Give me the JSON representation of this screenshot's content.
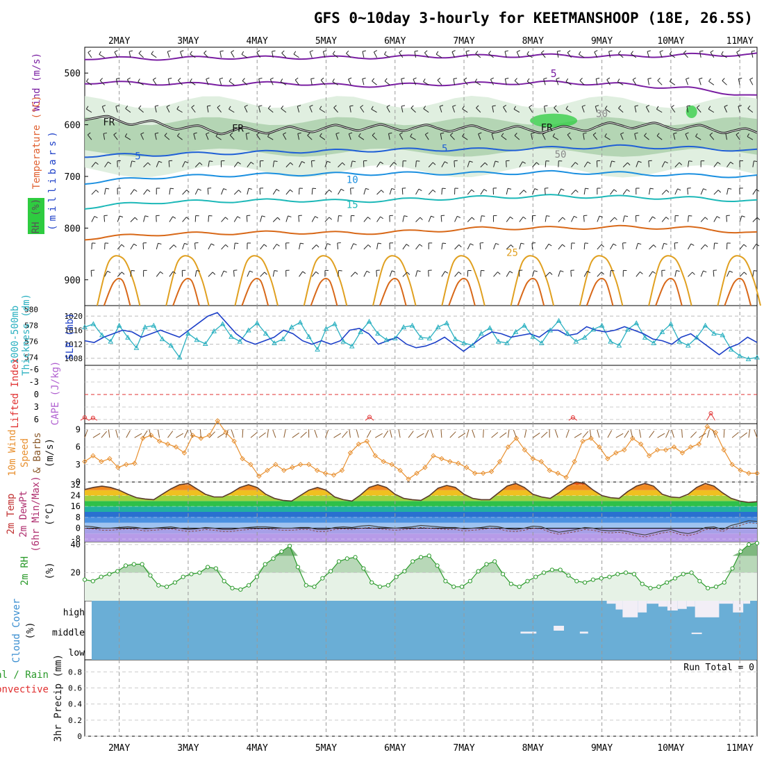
{
  "title": "GFS 0~10day 3-hourly for KEETMANSHOOP (18E, 26.5S)",
  "colors": {
    "wind_purple": "#7a1fa2",
    "freezing": "#111111",
    "t5": "#1f5fd6",
    "t10": "#1a8fe0",
    "t15": "#1cb8b8",
    "t25": "#e0a020",
    "t_warm": "#d86818",
    "rh_fill": "#d8ebd8",
    "rh_fill_dark": "#8fbf8f",
    "rh_fill_green": "#2ecc40",
    "thickness": "#2ab0c0",
    "slp": "#1c3fc8",
    "lifted_index": "#e03030",
    "cape": "#b060d0",
    "wind10": "#e89030",
    "barb": "#8b5a2b",
    "rh2m": "#2a9a2a",
    "cloud": "#6aaed6",
    "cloud_gap": "#f2eef6",
    "grid": "#aaaaaa"
  },
  "chart_data": {
    "time_axis": {
      "dates": [
        "2MAY",
        "3MAY",
        "4MAY",
        "5MAY",
        "6MAY",
        "7MAY",
        "8MAY",
        "9MAY",
        "10MAY",
        "11MAY"
      ],
      "start_day": 1.5,
      "end_day": 11.25
    },
    "upper_air": {
      "type": "contour",
      "ylabel_parts": [
        "Wind (m/s)",
        "Temperature (°C)",
        "RH (%)"
      ],
      "ylabel_axis": "(millibars)",
      "y_ticks": [
        500,
        600,
        700,
        800,
        900
      ],
      "y_range": [
        450,
        950
      ],
      "levels": [
        {
          "label": "5",
          "kind": "wind",
          "p": [
            471,
            472,
            470,
            470,
            470,
            468,
            467,
            466,
            468,
            465,
            464
          ]
        },
        {
          "label": "5",
          "kind": "wind",
          "p": [
            518,
            520,
            522,
            519,
            525,
            522,
            520,
            518,
            522,
            530,
            545
          ]
        },
        {
          "label": "FR",
          "kind": "freezing",
          "p": [
            585,
            598,
            612,
            610,
            605,
            606,
            608,
            610,
            600,
            605,
            615
          ]
        },
        {
          "label": "5",
          "kind": "temp",
          "p": [
            660,
            658,
            655,
            652,
            650,
            648,
            648,
            645,
            642,
            645,
            650
          ]
        },
        {
          "label": "10",
          "kind": "temp",
          "p": [
            712,
            702,
            698,
            696,
            695,
            694,
            694,
            692,
            694,
            698,
            700
          ]
        },
        {
          "label": "15",
          "kind": "temp",
          "p": [
            760,
            750,
            748,
            746,
            748,
            744,
            740,
            738,
            740,
            742,
            748
          ]
        },
        {
          "label": "25",
          "kind": "temp",
          "p": [
            820,
            812,
            810,
            808,
            810,
            806,
            800,
            800,
            798,
            800,
            810
          ]
        }
      ],
      "labels": [
        "FR",
        "FR",
        "FR",
        "5",
        "5",
        "10",
        "15",
        "25",
        "30",
        "50"
      ]
    },
    "thickness_slp": {
      "type": "line",
      "ylabel_left": "1000-500mb Thickness (dm)",
      "ylabel_right": "SLP (mb)",
      "thickness_ticks": [
        574,
        576,
        578,
        580
      ],
      "slp_ticks": [
        1008,
        1012,
        1016,
        1020
      ],
      "series": [
        {
          "name": "Thickness",
          "values": [
            577.8,
            578.2,
            576.8,
            576.0,
            578.0,
            576.5,
            575.2,
            577.8,
            578.0,
            576.3,
            575.5,
            574.0,
            577.0,
            576.2,
            575.7,
            577.3,
            578.2,
            576.6,
            576.0,
            577.4,
            578.3,
            577.0,
            575.8,
            576.3,
            577.8,
            578.4,
            576.6,
            575.0,
            577.6,
            578.2,
            576.0,
            575.4,
            577.2,
            578.5,
            577.0,
            576.2,
            576.4,
            577.8,
            578.0,
            576.5,
            576.4,
            577.8,
            578.3,
            576.3,
            575.8,
            575.5,
            577.0,
            577.7,
            576.0,
            575.8,
            577.2,
            578.0,
            576.6,
            575.8,
            577.4,
            578.6,
            577.0,
            576.0,
            576.5,
            577.5,
            578.0,
            576.0,
            575.5,
            577.5,
            578.3,
            576.5,
            575.8,
            577.2,
            578.2,
            576.0,
            575.5,
            576.5,
            578.0,
            577.0,
            576.8,
            575.0,
            574.2,
            573.8,
            574.0
          ]
        },
        {
          "name": "SLP",
          "values": [
            1013.0,
            1012.5,
            1014.0,
            1015.0,
            1016.0,
            1015.5,
            1014.0,
            1015.0,
            1016.0,
            1015.0,
            1014.0,
            1016.0,
            1018.0,
            1020.0,
            1021.0,
            1018.0,
            1015.0,
            1013.0,
            1012.0,
            1013.0,
            1014.0,
            1016.0,
            1015.0,
            1013.0,
            1012.0,
            1013.0,
            1012.0,
            1013.0,
            1016.0,
            1016.5,
            1015.0,
            1012.0,
            1013.0,
            1014.0,
            1012.0,
            1011.0,
            1011.5,
            1012.5,
            1014.0,
            1012.0,
            1010.0,
            1012.0,
            1014.0,
            1015.5,
            1015.0,
            1014.0,
            1014.5,
            1015.0,
            1014.0,
            1016.0,
            1016.0,
            1014.5,
            1015.0,
            1017.0,
            1016.0,
            1015.5,
            1016.0,
            1017.0,
            1016.0,
            1015.0,
            1013.5,
            1013.0,
            1012.0,
            1014.0,
            1015.0,
            1013.0,
            1011.0,
            1009.0,
            1011.0,
            1012.0,
            1014.0,
            1012.5
          ]
        }
      ]
    },
    "lifted_index_cape": {
      "type": "line",
      "ylabel_left": "Lifted Index",
      "ylabel_right": "CAPE (J/kg)",
      "y_ticks": [
        "-6",
        "-3",
        "0",
        "3",
        "6"
      ],
      "y_values": [
        -6,
        -3,
        0,
        3,
        6
      ],
      "events": [
        [
          1.5,
          5.5
        ],
        [
          1.62,
          5.6
        ],
        [
          5.63,
          5.4
        ],
        [
          8.58,
          5.5
        ],
        [
          10.58,
          4.5
        ]
      ]
    },
    "wind10m": {
      "type": "line",
      "ylabel": "10m Wind Speed & Barbs (m/s)",
      "y_ticks": [
        0,
        3,
        6,
        9
      ],
      "ylim": [
        0,
        10
      ],
      "values": [
        3.5,
        4.5,
        3.5,
        4.0,
        2.5,
        3.0,
        3.2,
        7.5,
        8.0,
        7.0,
        6.5,
        6.0,
        5.0,
        8.0,
        7.5,
        8.0,
        10.5,
        8.5,
        7.0,
        4.0,
        3.0,
        1.0,
        2.0,
        3.0,
        2.0,
        2.5,
        3.0,
        3.0,
        2.0,
        1.5,
        1.2,
        2.0,
        5.0,
        6.5,
        7.0,
        4.5,
        3.5,
        3.0,
        2.0,
        0.5,
        1.5,
        2.5,
        4.5,
        4.0,
        3.5,
        3.2,
        2.5,
        1.5,
        1.5,
        1.8,
        3.5,
        6.0,
        7.5,
        5.5,
        4.0,
        3.5,
        2.0,
        1.5,
        0.8,
        3.5,
        7.0,
        7.5,
        6.0,
        4.0,
        5.0,
        5.5,
        7.5,
        6.5,
        4.5,
        5.5,
        5.5,
        6.0,
        5.0,
        6.0,
        6.5,
        9.5,
        8.5,
        5.5,
        3.0,
        2.0,
        1.5,
        1.5
      ]
    },
    "temp2m": {
      "type": "area",
      "ylabel_parts": [
        "2m Temp",
        "2m DewPt",
        "(6hr Min/Max) (°C)"
      ],
      "y_ticks": [
        "32",
        "24",
        "16",
        "8",
        "0",
        "-8"
      ],
      "y_values": [
        32,
        24,
        16,
        8,
        0,
        -8
      ],
      "ylim": [
        -10,
        34
      ],
      "temp": [
        28.5,
        30.0,
        31.0,
        30.0,
        28.0,
        25.0,
        22.5,
        21.5,
        21.0,
        25.0,
        29.0,
        32.0,
        33.0,
        29.0,
        25.0,
        23.0,
        23.0,
        26.0,
        30.0,
        32.0,
        30.0,
        25.0,
        22.0,
        20.5,
        20.0,
        24.0,
        28.0,
        30.0,
        28.0,
        23.0,
        21.0,
        20.0,
        24.5,
        30.0,
        32.0,
        30.0,
        25.0,
        22.0,
        21.0,
        20.5,
        24.0,
        29.5,
        31.5,
        30.0,
        25.0,
        22.0,
        21.0,
        21.0,
        26.0,
        31.0,
        33.0,
        30.0,
        25.0,
        23.0,
        22.0,
        26.0,
        31.0,
        34.0,
        33.0,
        28.0,
        24.0,
        22.5,
        22.0,
        27.0,
        31.0,
        33.0,
        31.0,
        25.0,
        23.0,
        22.5,
        25.0,
        30.0,
        33.0,
        31.0,
        26.0,
        22.0,
        20.0,
        19.0,
        19.5
      ],
      "dewpoint": [
        1.5,
        1.0,
        0.0,
        0.0,
        0.5,
        1.0,
        0.5,
        -0.5,
        0.0,
        0.5,
        1.0,
        0.0,
        -1.0,
        -0.5,
        0.5,
        0.0,
        -1.0,
        -1.0,
        0.0,
        0.5,
        1.0,
        1.0,
        0.5,
        0.0,
        0.0,
        0.5,
        0.5,
        -1.0,
        -1.0,
        0.5,
        1.0,
        0.5,
        1.5,
        2.0,
        1.0,
        0.5,
        0.0,
        0.5,
        1.0,
        2.0,
        1.5,
        1.0,
        0.5,
        0.5,
        -0.5,
        0.0,
        0.5,
        1.5,
        1.0,
        -0.5,
        -1.0,
        0.0,
        1.5,
        1.0,
        -1.5,
        -3.0,
        -2.0,
        -1.0,
        0.5,
        0.0,
        -1.5,
        -2.0,
        -1.5,
        -2.5,
        -4.0,
        -5.0,
        -3.5,
        -2.0,
        -1.0,
        -3.0,
        -4.0,
        -2.5,
        0.5,
        1.0,
        -1.0,
        2.0,
        3.5,
        5.5,
        5.0
      ]
    },
    "rh2m": {
      "type": "area",
      "ylabel": "2m RH (%)",
      "y_ticks": [
        20,
        40
      ],
      "ylim": [
        0,
        42
      ],
      "values": [
        15,
        14,
        17,
        19,
        21,
        25,
        26,
        26,
        18,
        11,
        10,
        13,
        17,
        19,
        20,
        24,
        23,
        14,
        9,
        8,
        11,
        17,
        26,
        30,
        35,
        39,
        24,
        11,
        10,
        16,
        21,
        28,
        30,
        31,
        23,
        13,
        10,
        11,
        17,
        21,
        28,
        31,
        32,
        25,
        14,
        10,
        10,
        14,
        21,
        26,
        28,
        19,
        12,
        10,
        14,
        17,
        20,
        22,
        22,
        18,
        14,
        13,
        15,
        16,
        17,
        19,
        20,
        19,
        12,
        9,
        10,
        13,
        16,
        19,
        20,
        14,
        9,
        10,
        13,
        23,
        35,
        40,
        41
      ]
    },
    "cloud_cover": {
      "type": "area",
      "ylabel": "Cloud Cover (%)",
      "y_labels": [
        "high",
        "middle",
        "low"
      ],
      "high_gaps": [
        [
          9.07,
          9.2,
          0.15
        ],
        [
          9.2,
          9.3,
          0.45
        ],
        [
          9.3,
          9.52,
          0.85
        ],
        [
          9.52,
          9.65,
          0.6
        ],
        [
          9.65,
          9.82,
          0.15
        ],
        [
          9.82,
          9.95,
          0.3
        ],
        [
          9.95,
          10.1,
          0.5
        ],
        [
          10.1,
          10.23,
          0.42
        ],
        [
          10.23,
          10.35,
          0.3
        ],
        [
          10.35,
          10.7,
          0.85
        ],
        [
          10.7,
          10.9,
          0.15
        ],
        [
          10.9,
          11.05,
          0.6
        ],
        [
          11.05,
          11.15,
          0.15
        ]
      ],
      "mid_gaps": [
        [
          7.82,
          8.05,
          0.2
        ],
        [
          8.3,
          8.45,
          0.5
        ],
        [
          8.68,
          8.8,
          0.2
        ],
        [
          10.3,
          10.45,
          0.15
        ]
      ]
    },
    "precip": {
      "type": "bar",
      "ylabel": "3hr Precip (mm)",
      "legend": [
        "Total / Rain",
        "Convective"
      ],
      "y_ticks": [
        "0",
        "0.2",
        "0.4",
        "0.6",
        "0.8"
      ],
      "y_values": [
        0,
        0.2,
        0.4,
        0.6,
        0.8
      ],
      "ylim": [
        0,
        0.95
      ],
      "run_total_label": "Run Total = 0",
      "values": []
    }
  }
}
